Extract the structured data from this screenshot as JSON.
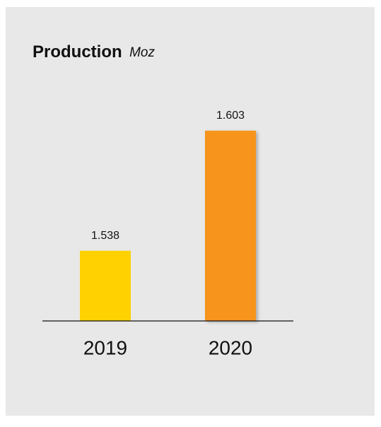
{
  "chart_data": {
    "type": "bar",
    "title": "Production",
    "unit": "Moz",
    "categories": [
      "2019",
      "2020"
    ],
    "values": [
      1.538,
      1.603
    ],
    "colors": [
      "#ffd100",
      "#f7941d"
    ],
    "ylim": [
      1.5,
      1.65
    ]
  }
}
